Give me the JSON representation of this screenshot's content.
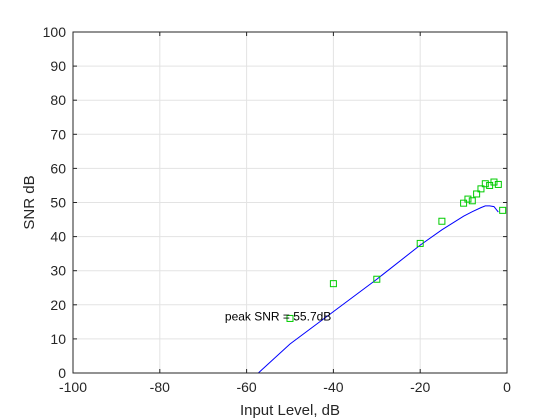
{
  "chart_data": {
    "type": "line",
    "title": "",
    "xlabel": "Input Level, dB",
    "ylabel": "SNR dB",
    "xlim": [
      -100,
      0
    ],
    "ylim": [
      0,
      100
    ],
    "xticks": [
      -100,
      -80,
      -60,
      -40,
      -20,
      0
    ],
    "yticks": [
      0,
      10,
      20,
      30,
      40,
      50,
      60,
      70,
      80,
      90,
      100
    ],
    "grid": true,
    "colors": {
      "line": "#0000ff",
      "marker": "#00cc00",
      "grid": "#e3e3e3",
      "axis": "#262626"
    },
    "series": [
      {
        "type": "line",
        "x": [
          -57.3,
          -50,
          -40,
          -30,
          -20,
          -15,
          -10,
          -8,
          -6,
          -5,
          -4,
          -3,
          -2
        ],
        "y": [
          0,
          8.5,
          18,
          27.5,
          37.5,
          42,
          46,
          47.3,
          48.5,
          49,
          49,
          48.8,
          47.2
        ]
      },
      {
        "type": "scatter",
        "marker": "square",
        "x": [
          -50,
          -40,
          -30,
          -20,
          -15,
          -10,
          -9,
          -8,
          -7,
          -6,
          -5,
          -4,
          -3,
          -2,
          -1
        ],
        "y": [
          16,
          26.2,
          27.5,
          38,
          44.5,
          49.8,
          51,
          50.5,
          52.5,
          54,
          55.5,
          55,
          56,
          55.3,
          47.7
        ]
      }
    ],
    "annotations": [
      {
        "text": "peak SNR = 55.7dB",
        "x": -65,
        "y": 16.5
      }
    ]
  }
}
